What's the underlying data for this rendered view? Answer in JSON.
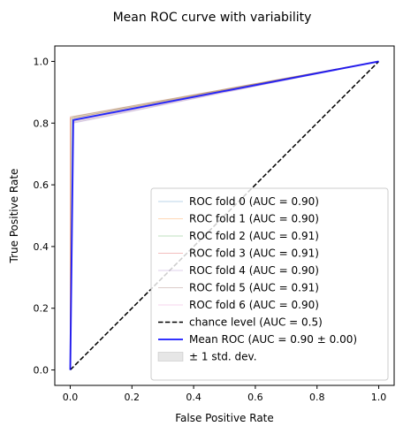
{
  "chart_data": {
    "type": "line",
    "title": "Mean ROC curve with variability",
    "xlabel": "False Positive Rate",
    "ylabel": "True Positive Rate",
    "xlim": [
      -0.05,
      1.05
    ],
    "ylim": [
      -0.05,
      1.05
    ],
    "xticks": [
      0.0,
      0.2,
      0.4,
      0.6,
      0.8,
      1.0
    ],
    "yticks": [
      0.0,
      0.2,
      0.4,
      0.6,
      0.8,
      1.0
    ],
    "xtick_labels": [
      "0.0",
      "0.2",
      "0.4",
      "0.6",
      "0.8",
      "1.0"
    ],
    "ytick_labels": [
      "0.0",
      "0.2",
      "0.4",
      "0.6",
      "0.8",
      "1.0"
    ],
    "legend_position": "lower-right",
    "series": [
      {
        "name": "ROC fold 0 (AUC = 0.90)",
        "color": "#1f77b4",
        "x": [
          0,
          0.01,
          1
        ],
        "y": [
          0,
          0.81,
          1
        ]
      },
      {
        "name": "ROC fold 1 (AUC = 0.90)",
        "color": "#ff7f0e",
        "x": [
          0,
          0.0,
          1
        ],
        "y": [
          0,
          0.815,
          1
        ]
      },
      {
        "name": "ROC fold 2 (AUC = 0.91)",
        "color": "#2ca02c",
        "x": [
          0,
          0.005,
          1
        ],
        "y": [
          0,
          0.82,
          1
        ]
      },
      {
        "name": "ROC fold 3 (AUC = 0.91)",
        "color": "#d62728",
        "x": [
          0,
          0.0,
          1
        ],
        "y": [
          0,
          0.82,
          1
        ]
      },
      {
        "name": "ROC fold 4 (AUC = 0.90)",
        "color": "#9467bd",
        "x": [
          0,
          0.01,
          1
        ],
        "y": [
          0,
          0.8,
          1
        ]
      },
      {
        "name": "ROC fold 5 (AUC = 0.91)",
        "color": "#8c564b",
        "x": [
          0,
          0.005,
          1
        ],
        "y": [
          0,
          0.815,
          1
        ]
      },
      {
        "name": "ROC fold 6 (AUC = 0.90)",
        "color": "#e377c2",
        "x": [
          0,
          0.01,
          1
        ],
        "y": [
          0,
          0.805,
          1
        ]
      }
    ],
    "chance": {
      "name": "chance level (AUC = 0.5)",
      "color": "#000000",
      "x": [
        0,
        1
      ],
      "y": [
        0,
        1
      ]
    },
    "mean": {
      "name": "Mean ROC (AUC = 0.90 ± 0.00)",
      "color": "#0000ff",
      "x": [
        0,
        0.01,
        1
      ],
      "y": [
        0,
        0.81,
        1
      ]
    },
    "band": {
      "name": "± 1 std. dev.",
      "color": "#808080",
      "x": [
        0,
        0.01,
        1
      ],
      "y_upper": [
        0,
        0.82,
        1
      ],
      "y_lower": [
        0,
        0.8,
        1
      ]
    }
  }
}
